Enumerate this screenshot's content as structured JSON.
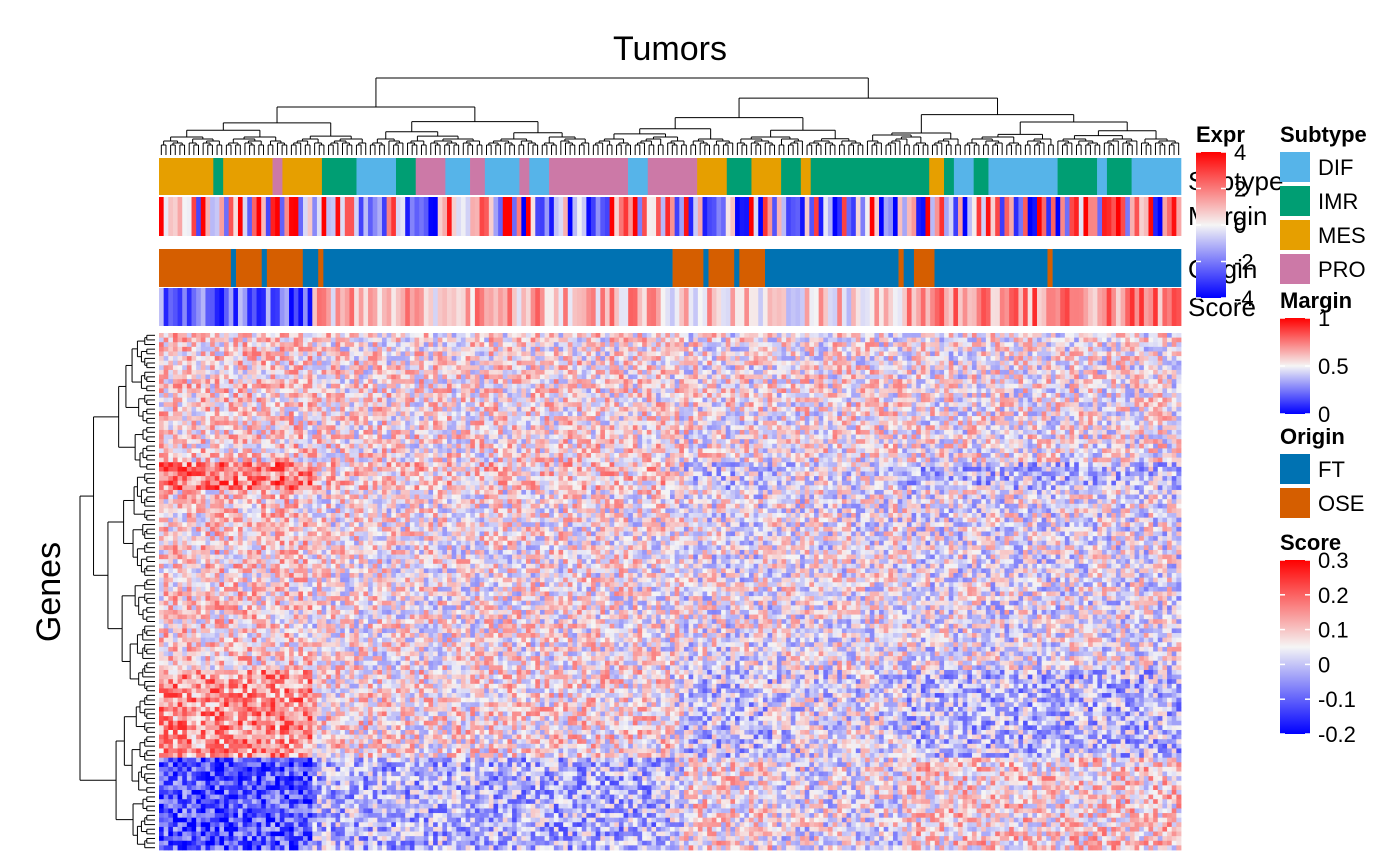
{
  "chart_data": {
    "type": "heatmap",
    "title": "Tumors",
    "row_title": "Genes",
    "colors": {
      "low": "#0000ff",
      "mid": "#f5f5f5",
      "high": "#ff0000",
      "subtype": {
        "DIF": "#56b4e9",
        "IMR": "#009e73",
        "MES": "#e69f00",
        "PRO": "#cc79a7"
      },
      "origin": {
        "FT": "#0072b2",
        "OSE": "#d55e00"
      }
    },
    "annotation_rows": [
      "Subtype",
      "Margin",
      "Origin",
      "Score"
    ],
    "subtype_segments": [
      {
        "label": "MES",
        "span": 0.055
      },
      {
        "label": "IMR",
        "span": 0.01
      },
      {
        "label": "MES",
        "span": 0.05
      },
      {
        "label": "PRO",
        "span": 0.01
      },
      {
        "label": "MES",
        "span": 0.04
      },
      {
        "label": "IMR",
        "span": 0.035
      },
      {
        "label": "DIF",
        "span": 0.04
      },
      {
        "label": "IMR",
        "span": 0.02
      },
      {
        "label": "PRO",
        "span": 0.03
      },
      {
        "label": "DIF",
        "span": 0.025
      },
      {
        "label": "PRO",
        "span": 0.015
      },
      {
        "label": "DIF",
        "span": 0.035
      },
      {
        "label": "PRO",
        "span": 0.01
      },
      {
        "label": "DIF",
        "span": 0.02
      },
      {
        "label": "PRO",
        "span": 0.08
      },
      {
        "label": "DIF",
        "span": 0.02
      },
      {
        "label": "PRO",
        "span": 0.05
      },
      {
        "label": "MES",
        "span": 0.03
      },
      {
        "label": "IMR",
        "span": 0.025
      },
      {
        "label": "MES",
        "span": 0.03
      },
      {
        "label": "IMR",
        "span": 0.02
      },
      {
        "label": "MES",
        "span": 0.01
      },
      {
        "label": "IMR",
        "span": 0.12
      },
      {
        "label": "MES",
        "span": 0.015
      },
      {
        "label": "IMR",
        "span": 0.01
      },
      {
        "label": "DIF",
        "span": 0.02
      },
      {
        "label": "IMR",
        "span": 0.015
      },
      {
        "label": "DIF",
        "span": 0.07
      },
      {
        "label": "IMR",
        "span": 0.04
      },
      {
        "label": "DIF",
        "span": 0.01
      },
      {
        "label": "IMR",
        "span": 0.025
      },
      {
        "label": "DIF",
        "span": 0.05
      }
    ],
    "origin_segments": [
      {
        "label": "OSE",
        "span": 0.07
      },
      {
        "label": "FT",
        "span": 0.005
      },
      {
        "label": "OSE",
        "span": 0.025
      },
      {
        "label": "FT",
        "span": 0.005
      },
      {
        "label": "OSE",
        "span": 0.035
      },
      {
        "label": "FT",
        "span": 0.015
      },
      {
        "label": "OSE",
        "span": 0.005
      },
      {
        "label": "FT",
        "span": 0.15
      },
      {
        "label": "FT",
        "span": 0.09
      },
      {
        "label": "FT",
        "span": 0.1
      },
      {
        "label": "OSE",
        "span": 0.03
      },
      {
        "label": "FT",
        "span": 0.005
      },
      {
        "label": "OSE",
        "span": 0.025
      },
      {
        "label": "FT",
        "span": 0.005
      },
      {
        "label": "OSE",
        "span": 0.025
      },
      {
        "label": "FT",
        "span": 0.13
      },
      {
        "label": "OSE",
        "span": 0.005
      },
      {
        "label": "FT",
        "span": 0.01
      },
      {
        "label": "OSE",
        "span": 0.02
      },
      {
        "label": "FT",
        "span": 0.11
      },
      {
        "label": "OSE",
        "span": 0.005
      },
      {
        "label": "FT",
        "span": 0.125
      }
    ],
    "legends": [
      {
        "title": "Expr",
        "type": "continuous",
        "ticks": [
          "4",
          "2",
          "0",
          "-2",
          "-4"
        ]
      },
      {
        "title": "Subtype",
        "type": "categorical",
        "items": [
          "DIF",
          "IMR",
          "MES",
          "PRO"
        ]
      },
      {
        "title": "Margin",
        "type": "continuous",
        "ticks": [
          "1",
          "0.5",
          "0"
        ]
      },
      {
        "title": "Origin",
        "type": "categorical",
        "items": [
          "FT",
          "OSE"
        ]
      },
      {
        "title": "Score",
        "type": "continuous",
        "ticks": [
          "0.3",
          "0.2",
          "0.1",
          "0",
          "-0.1",
          "-0.2"
        ]
      }
    ]
  }
}
